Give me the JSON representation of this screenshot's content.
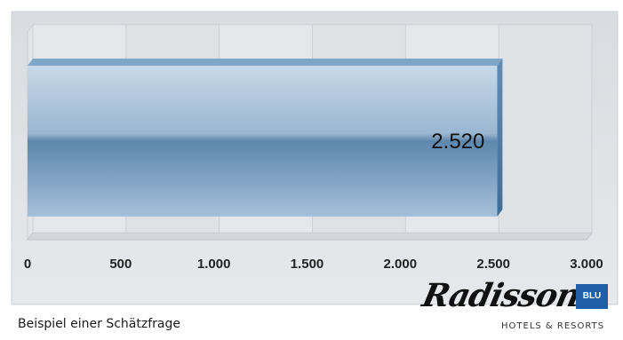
{
  "chart_data": {
    "type": "bar",
    "orientation": "horizontal",
    "categories": [
      ""
    ],
    "values": [
      2520
    ],
    "data_labels": [
      "2.520"
    ],
    "xlim": [
      0,
      3000
    ],
    "x_ticks": [
      0,
      500,
      1000,
      1500,
      2000,
      2500,
      3000
    ],
    "x_tick_labels": [
      "0",
      "500",
      "1.000",
      "1.500",
      "2.000",
      "2.500",
      "3.000"
    ],
    "grid": true,
    "title": "",
    "xlabel": "",
    "ylabel": ""
  },
  "caption": "Beispiel einer Schätzfrage",
  "logo": {
    "script": "Radisson",
    "badge": "BLU",
    "subtitle": "HOTELS & RESORTS"
  },
  "colors": {
    "background": "#e1e3e6",
    "bar_top": "#b8cde0",
    "bar_bottom": "#6f98bd",
    "bar_side": "#4f7da6",
    "badge": "#1f5fa8"
  }
}
